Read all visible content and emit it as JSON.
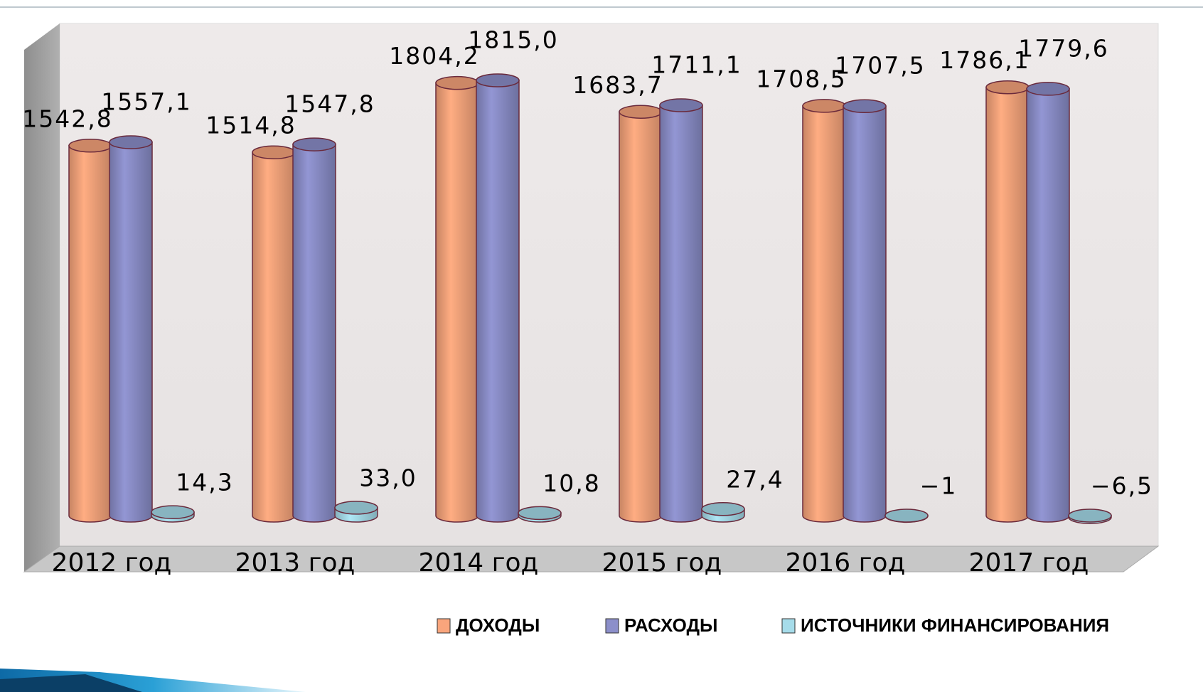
{
  "chart_data": {
    "type": "cylinder-bar",
    "categories": [
      "2012 год",
      "2013 год",
      "2014 год",
      "2015 год",
      "2016 год",
      "2017 год"
    ],
    "series": [
      {
        "name": "ДОХОДЫ",
        "color": "#f9a57c",
        "values": [
          1542.8,
          1514.8,
          1804.2,
          1683.7,
          1708.5,
          1786.1
        ],
        "value_labels": [
          "1542,8",
          "1514,8",
          "1804,2",
          "1683,7",
          "1708,5",
          "1786,1"
        ]
      },
      {
        "name": "РАСХОДЫ",
        "color": "#8c8fca",
        "values": [
          1557.1,
          1547.8,
          1815.0,
          1711.1,
          1707.5,
          1779.6
        ],
        "value_labels": [
          "1557,1",
          "1547,8",
          "1815,0",
          "1711,1",
          "1707,5",
          "1779,6"
        ]
      },
      {
        "name": "ИСТОЧНИКИ ФИНАНСИРОВАНИЯ",
        "color": "#a6dcea",
        "values": [
          14.3,
          33.0,
          10.8,
          27.4,
          -1,
          -6.5
        ],
        "value_labels": [
          "14,3",
          "33,0",
          "10,8",
          "27,4",
          "−1",
          "−6,5"
        ]
      }
    ],
    "legend": "bottom-right"
  }
}
